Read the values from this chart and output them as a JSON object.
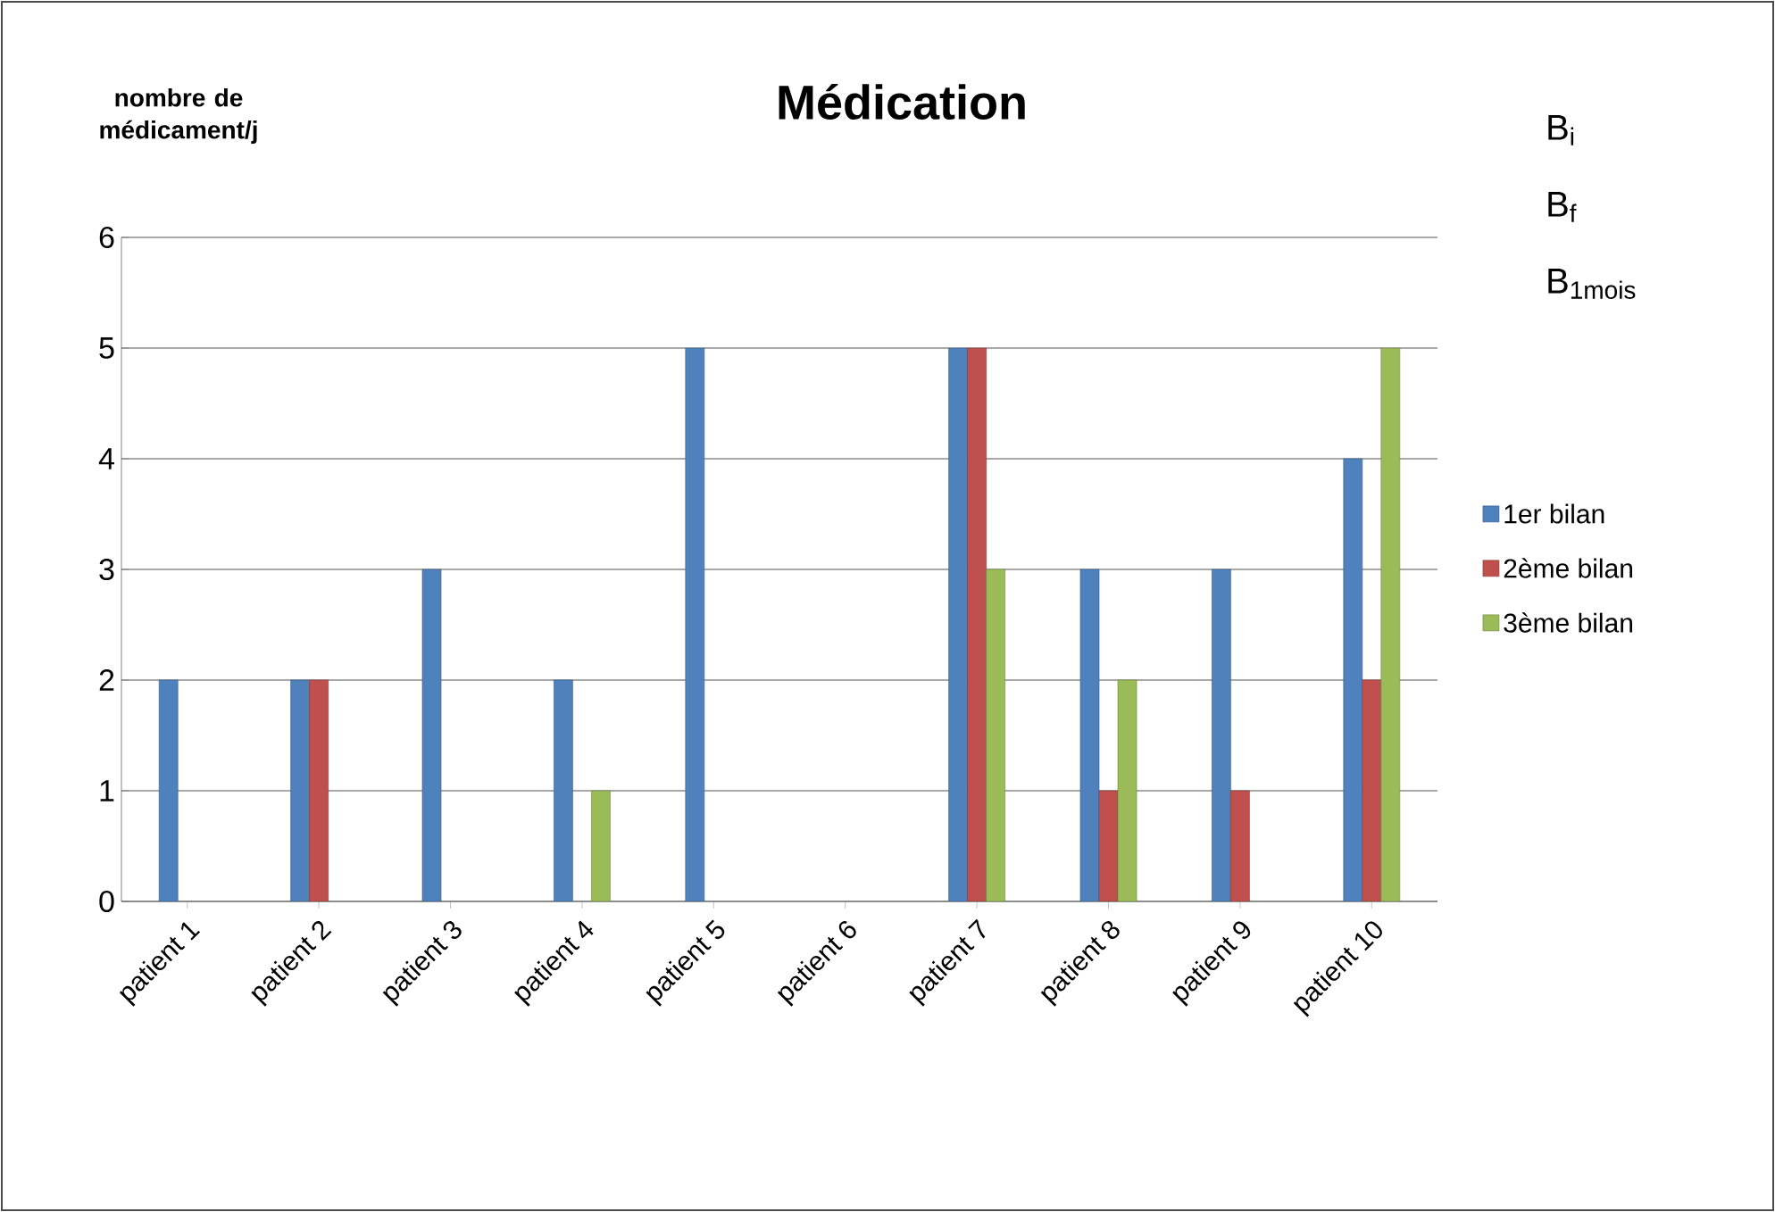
{
  "chart_data": {
    "type": "bar",
    "title": "Médication",
    "ylabel": "nombre de médicament/j",
    "categories": [
      "patient 1",
      "patient 2",
      "patient 3",
      "patient 4",
      "patient 5",
      "patient 6",
      "patient 7",
      "patient 8",
      "patient 9",
      "patient 10"
    ],
    "series": [
      {
        "name": "1er bilan",
        "color": "#4f81bd",
        "values": [
          2,
          2,
          3,
          2,
          5,
          null,
          5,
          3,
          3,
          4
        ]
      },
      {
        "name": "2ème bilan",
        "color": "#c0504d",
        "values": [
          null,
          2,
          null,
          null,
          null,
          null,
          5,
          1,
          1,
          2
        ]
      },
      {
        "name": "3ème bilan",
        "color": "#9bbb59",
        "values": [
          null,
          null,
          null,
          1,
          null,
          null,
          3,
          2,
          null,
          5
        ]
      }
    ],
    "ylim": [
      0,
      6
    ],
    "yticks": [
      0,
      1,
      2,
      3,
      4,
      5,
      6
    ],
    "grid": "y",
    "legend": "right",
    "annotations": [
      "B$_{i}$",
      "B$_{f}$",
      "B$_{1mois}$"
    ]
  }
}
